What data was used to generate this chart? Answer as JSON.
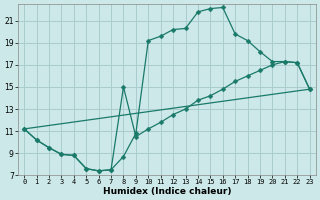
{
  "background_color": "#cce8e8",
  "grid_color": "#aacccc",
  "line_color": "#1a7a6a",
  "xlabel": "Humidex (Indice chaleur)",
  "xlim": [
    -0.5,
    23.5
  ],
  "ylim": [
    7,
    22.5
  ],
  "yticks": [
    7,
    9,
    11,
    13,
    15,
    17,
    19,
    21
  ],
  "xticks": [
    0,
    1,
    2,
    3,
    4,
    5,
    6,
    7,
    8,
    9,
    10,
    11,
    12,
    13,
    14,
    15,
    16,
    17,
    18,
    19,
    20,
    21,
    22,
    23
  ],
  "curve1_x": [
    0,
    1,
    2,
    3,
    4,
    5,
    6,
    7,
    8,
    9,
    10,
    11,
    12,
    13,
    14,
    15,
    16,
    17,
    18,
    19,
    20,
    21,
    22,
    23
  ],
  "curve1_y": [
    11.2,
    10.2,
    9.5,
    8.9,
    8.8,
    7.6,
    7.4,
    7.5,
    8.7,
    10.8,
    19.2,
    19.6,
    20.2,
    20.3,
    21.8,
    22.1,
    22.2,
    19.8,
    19.2,
    18.2,
    17.3,
    17.3,
    17.2,
    14.8
  ],
  "curve2_x": [
    0,
    1,
    2,
    3,
    4,
    5,
    6,
    7,
    8,
    9,
    10,
    11,
    12,
    13,
    14,
    15,
    16,
    17,
    18,
    19,
    20,
    21,
    22,
    23
  ],
  "curve2_y": [
    11.2,
    10.2,
    9.5,
    8.9,
    8.8,
    7.6,
    7.4,
    7.5,
    15.0,
    10.5,
    11.2,
    11.8,
    12.5,
    13.0,
    13.8,
    14.2,
    14.8,
    15.5,
    16.0,
    16.5,
    17.0,
    17.3,
    17.2,
    14.8
  ],
  "curve3_x": [
    0,
    23
  ],
  "curve3_y": [
    11.2,
    14.8
  ]
}
